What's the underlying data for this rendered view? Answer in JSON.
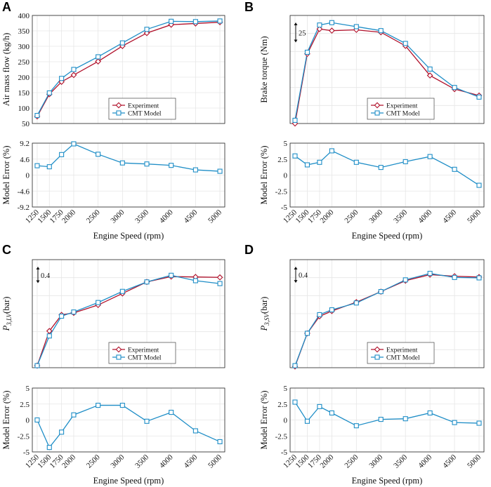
{
  "figure": {
    "x_axis_label": "Engine Speed (rpm)",
    "error_axis_label": "Model Error (%)"
  },
  "colors": {
    "experiment": "#b0102a",
    "model": "#1f8ec7"
  },
  "chart_data": [
    {
      "id": "A",
      "letter": "A",
      "type": "line",
      "title": "",
      "xlabel": "Engine Speed (rpm)",
      "ylabel": "Air mass flow (kg/h)",
      "x": [
        1250,
        1500,
        1750,
        2000,
        2500,
        3000,
        3500,
        4000,
        4500,
        5000
      ],
      "x_tick_labels": [
        "1250",
        "1500",
        "1750",
        "2000",
        "2500",
        "3000",
        "3500",
        "4000",
        "4500",
        "5000"
      ],
      "xlim": [
        1150,
        5100
      ],
      "ylim": [
        50,
        400
      ],
      "y_ticks": [
        50,
        100,
        150,
        200,
        250,
        300,
        350,
        400
      ],
      "y_tick_labels": [
        "50",
        "100",
        "150",
        "200",
        "250",
        "300",
        "350",
        "400"
      ],
      "series": [
        {
          "name": "Experiment",
          "marker": "diamond",
          "values": [
            73,
            145,
            185,
            207,
            251,
            301,
            343,
            370,
            374,
            378
          ]
        },
        {
          "name": "CMT Model",
          "marker": "square",
          "values": [
            76,
            149,
            196,
            225,
            266,
            311,
            355,
            381,
            380,
            382
          ]
        }
      ],
      "legend": [
        "Experiment",
        "CMT Model"
      ],
      "error": {
        "ylabel": "Model Error (%)",
        "ylim": [
          -9.2,
          9.2
        ],
        "y_ticks": [
          -9.2,
          -4.6,
          0,
          4.6,
          9.2
        ],
        "y_tick_labels": [
          "-9.2",
          "-4.6",
          "0",
          "4.6",
          "9.2"
        ],
        "values": [
          2.7,
          2.4,
          5.9,
          9.0,
          6.0,
          3.5,
          3.2,
          2.8,
          1.5,
          1.1
        ]
      }
    },
    {
      "id": "B",
      "letter": "B",
      "type": "line",
      "title": "",
      "xlabel": "Engine Speed (rpm)",
      "ylabel": "Brake torque (Nm)",
      "scale_label": "25",
      "scale_units": 25,
      "x": [
        1250,
        1500,
        1750,
        2000,
        2500,
        3000,
        3500,
        4000,
        4500,
        5000
      ],
      "x_tick_labels": [
        "1250",
        "1500",
        "1750",
        "2000",
        "2500",
        "3000",
        "3500",
        "4000",
        "4500",
        "5000"
      ],
      "xlim": [
        1150,
        5100
      ],
      "ylim": [
        0,
        135
      ],
      "series": [
        {
          "name": "Experiment",
          "marker": "diamond",
          "values": [
            0,
            87,
            118,
            116,
            117,
            114,
            97,
            60,
            43,
            35
          ]
        },
        {
          "name": "CMT Model",
          "marker": "square",
          "values": [
            4,
            89,
            123,
            126,
            121,
            116,
            100,
            68,
            45,
            33
          ]
        }
      ],
      "legend": [
        "Experiment",
        "CMT Model"
      ],
      "error": {
        "ylabel": "Model Error (%)",
        "ylim": [
          -5,
          5
        ],
        "y_ticks": [
          -5,
          -2.5,
          0,
          2.5,
          5
        ],
        "y_tick_labels": [
          "-5",
          "-2.5",
          "0",
          "2.5",
          "5"
        ],
        "values": [
          3.0,
          1.6,
          2.0,
          3.8,
          2.0,
          1.2,
          2.1,
          2.9,
          0.9,
          -1.6
        ]
      }
    },
    {
      "id": "C",
      "letter": "C",
      "type": "line",
      "title": "",
      "xlabel": "Engine Speed (rpm)",
      "ylabel": "P",
      "ylabel_sub": "3,LV",
      "ylabel_unit": "(bar)",
      "scale_label": "0.4",
      "scale_units": 0.4,
      "x": [
        1250,
        1500,
        1750,
        2000,
        2500,
        3000,
        3500,
        4000,
        4500,
        5000
      ],
      "x_tick_labels": [
        "1250",
        "1500",
        "1750",
        "2000",
        "2500",
        "3000",
        "3500",
        "4000",
        "4500",
        "5000"
      ],
      "xlim": [
        1150,
        5100
      ],
      "ylim": [
        0,
        2.62
      ],
      "series": [
        {
          "name": "Experiment",
          "marker": "diamond",
          "values": [
            0.05,
            0.89,
            1.28,
            1.33,
            1.52,
            1.8,
            2.08,
            2.21,
            2.2,
            2.19
          ]
        },
        {
          "name": "CMT Model",
          "marker": "square",
          "values": [
            0.05,
            0.77,
            1.25,
            1.35,
            1.58,
            1.85,
            2.08,
            2.24,
            2.11,
            2.04
          ]
        }
      ],
      "legend": [
        "Experiment",
        "CMT Model"
      ],
      "error": {
        "ylabel": "Model Error (%)",
        "ylim": [
          -5,
          5
        ],
        "y_ticks": [
          -5,
          -2.5,
          0,
          2.5,
          5
        ],
        "y_tick_labels": [
          "-5",
          "-2.5",
          "0",
          "2.5",
          "5"
        ],
        "values": [
          0.0,
          -4.3,
          -1.9,
          0.8,
          2.3,
          2.3,
          -0.2,
          1.2,
          -1.7,
          -3.4
        ]
      }
    },
    {
      "id": "D",
      "letter": "D",
      "type": "line",
      "title": "",
      "xlabel": "Engine Speed (rpm)",
      "ylabel": "P",
      "ylabel_sub": "3,SV",
      "ylabel_unit": "(bar)",
      "scale_label": "0.4",
      "scale_units": 0.4,
      "x": [
        1250,
        1500,
        1750,
        2000,
        2500,
        3000,
        3500,
        4000,
        4500,
        5000
      ],
      "x_tick_labels": [
        "1250",
        "1500",
        "1750",
        "2000",
        "2500",
        "3000",
        "3500",
        "4000",
        "4500",
        "5000"
      ],
      "xlim": [
        1150,
        5100
      ],
      "ylim": [
        0,
        2.67
      ],
      "series": [
        {
          "name": "Experiment",
          "marker": "diamond",
          "values": [
            0.03,
            0.85,
            1.27,
            1.4,
            1.62,
            1.88,
            2.15,
            2.3,
            2.26,
            2.24
          ]
        },
        {
          "name": "CMT Model",
          "marker": "square",
          "values": [
            0.05,
            0.85,
            1.31,
            1.43,
            1.6,
            1.88,
            2.17,
            2.33,
            2.23,
            2.22
          ]
        }
      ],
      "legend": [
        "Experiment",
        "CMT Model"
      ],
      "error": {
        "ylabel": "Model Error (%)",
        "ylim": [
          -5,
          5
        ],
        "y_ticks": [
          -5,
          -2.5,
          0,
          2.5,
          5
        ],
        "y_tick_labels": [
          "-5",
          "-2.5",
          "0",
          "2.5",
          "5"
        ],
        "values": [
          2.8,
          -0.2,
          2.1,
          1.1,
          -0.9,
          0.1,
          0.2,
          1.1,
          -0.4,
          -0.5
        ]
      }
    }
  ]
}
